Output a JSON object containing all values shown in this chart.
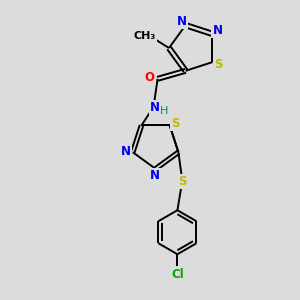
{
  "bg_color": "#dcdcdc",
  "bond_color": "#000000",
  "atom_colors": {
    "N": "#0000ee",
    "S": "#bbbb00",
    "O": "#ff0000",
    "Cl": "#00aa00",
    "C": "#000000",
    "H": "#008888"
  },
  "figsize": [
    3.0,
    3.0
  ],
  "dpi": 100,
  "lw": 1.4,
  "fs": 8.5
}
